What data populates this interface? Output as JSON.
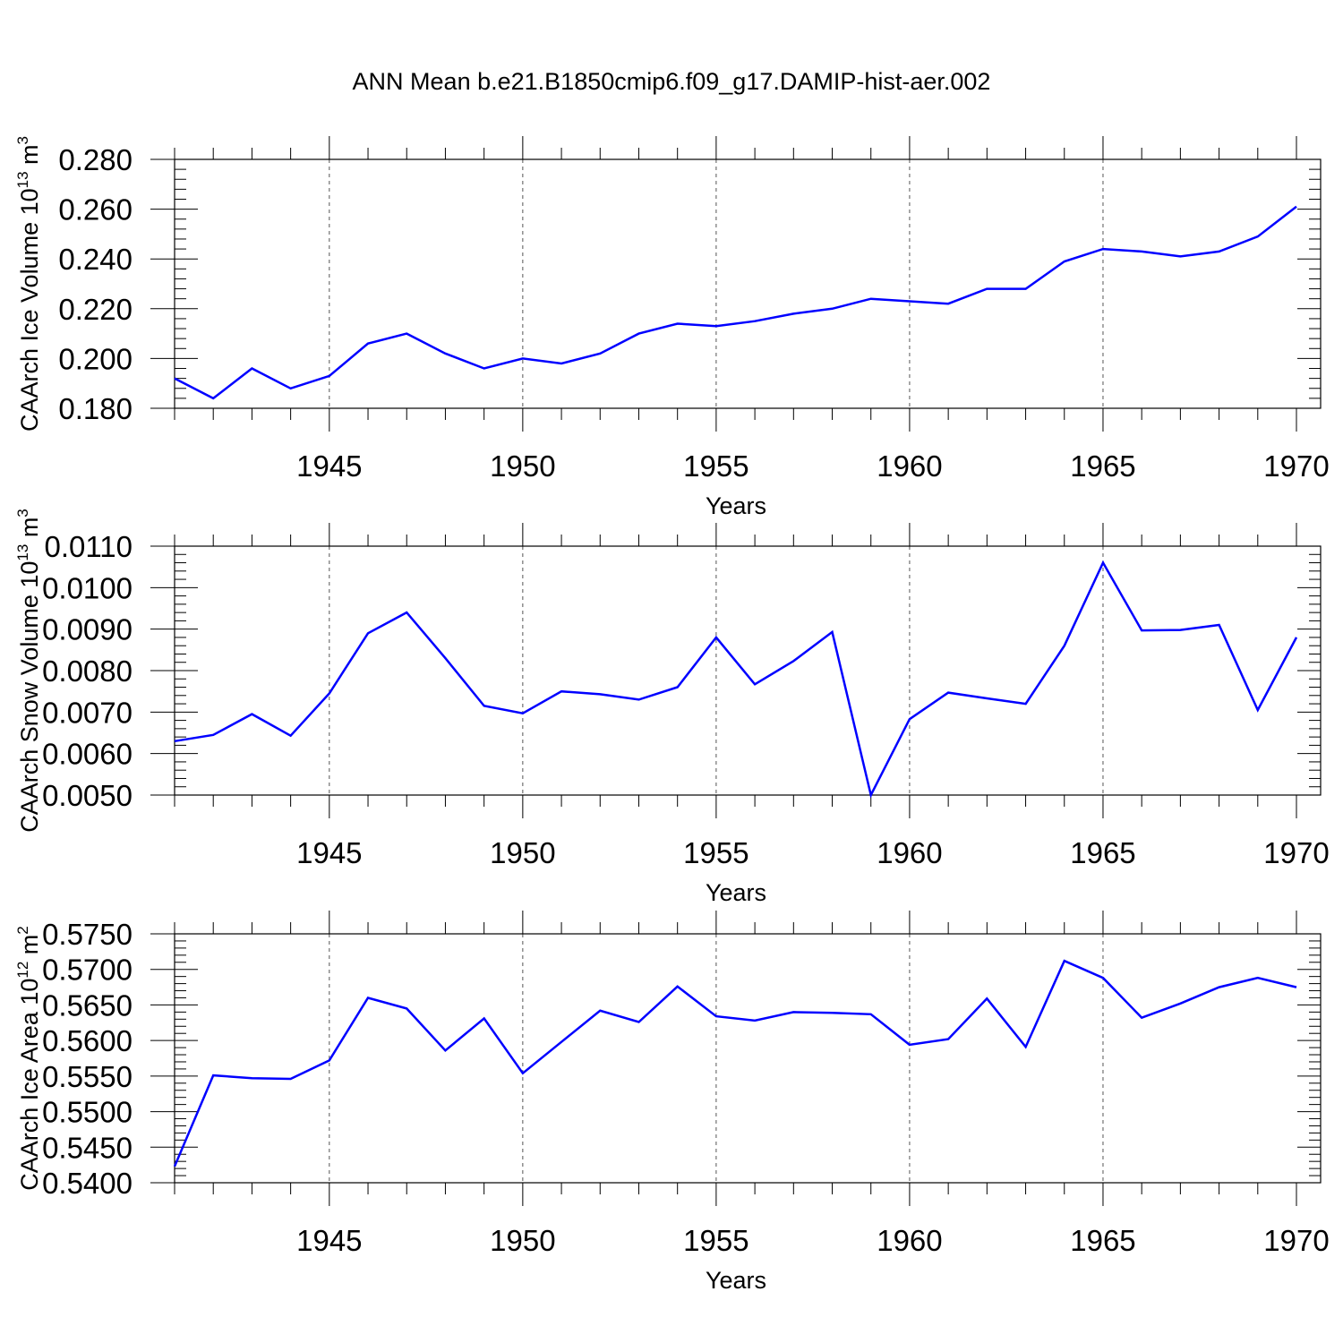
{
  "figure": {
    "title": "ANN Mean b.e21.B1850cmip6.f09_g17.DAMIP-hist-aer.002"
  },
  "colors": {
    "series": "#0000ff",
    "axis": "#000000",
    "grid": "#555555"
  },
  "chart_data": [
    {
      "type": "line",
      "xlabel": "Years",
      "ylabel": {
        "main": "CAArch Ice Volume 10",
        "exp": "13",
        "unit": " m",
        "unit_exp": "3"
      },
      "xlim": [
        1941,
        1970
      ],
      "ylim": [
        0.18,
        0.28
      ],
      "x_ticks": [
        1945,
        1950,
        1955,
        1960,
        1965,
        1970
      ],
      "y_ticks": [
        "0.180",
        "0.200",
        "0.220",
        "0.240",
        "0.260",
        "0.280"
      ],
      "grid": "vertical dashed at major x ticks",
      "x": [
        1941,
        1942,
        1943,
        1944,
        1945,
        1946,
        1947,
        1948,
        1949,
        1950,
        1951,
        1952,
        1953,
        1954,
        1955,
        1956,
        1957,
        1958,
        1959,
        1960,
        1961,
        1962,
        1963,
        1964,
        1965,
        1966,
        1967,
        1968,
        1969,
        1970
      ],
      "series": [
        {
          "values": [
            0.192,
            0.184,
            0.196,
            0.188,
            0.193,
            0.206,
            0.21,
            0.202,
            0.196,
            0.2,
            0.198,
            0.202,
            0.21,
            0.214,
            0.213,
            0.215,
            0.218,
            0.22,
            0.224,
            0.223,
            0.222,
            0.228,
            0.228,
            0.239,
            0.244,
            0.243,
            0.241,
            0.243,
            0.249,
            0.261
          ]
        }
      ]
    },
    {
      "type": "line",
      "xlabel": "Years",
      "ylabel": {
        "main": "CAArch Snow Volume 10",
        "exp": "13",
        "unit": " m",
        "unit_exp": "3"
      },
      "xlim": [
        1941,
        1970
      ],
      "ylim": [
        0.005,
        0.011
      ],
      "x_ticks": [
        1945,
        1950,
        1955,
        1960,
        1965,
        1970
      ],
      "y_ticks": [
        "0.0050",
        "0.0060",
        "0.0070",
        "0.0080",
        "0.0090",
        "0.0100",
        "0.0110"
      ],
      "grid": "vertical dashed at major x ticks",
      "x": [
        1941,
        1942,
        1943,
        1944,
        1945,
        1946,
        1947,
        1948,
        1949,
        1950,
        1951,
        1952,
        1953,
        1954,
        1955,
        1956,
        1957,
        1958,
        1959,
        1960,
        1961,
        1962,
        1963,
        1964,
        1965,
        1966,
        1967,
        1968,
        1969,
        1970
      ],
      "series": [
        {
          "values": [
            0.0063,
            0.00645,
            0.00695,
            0.00643,
            0.00745,
            0.0089,
            0.0094,
            0.0083,
            0.00715,
            0.00697,
            0.0075,
            0.00743,
            0.0073,
            0.0076,
            0.0088,
            0.00767,
            0.00823,
            0.00893,
            0.005,
            0.00683,
            0.00747,
            0.00733,
            0.0072,
            0.0086,
            0.0106,
            0.00897,
            0.00898,
            0.0091,
            0.00705,
            0.0088
          ]
        }
      ]
    },
    {
      "type": "line",
      "xlabel": "Years",
      "ylabel": {
        "main": "CAArch Ice Area 10",
        "exp": "12",
        "unit": " m",
        "unit_exp": "2"
      },
      "xlim": [
        1941,
        1970
      ],
      "ylim": [
        0.54,
        0.575
      ],
      "x_ticks": [
        1945,
        1950,
        1955,
        1960,
        1965,
        1970
      ],
      "y_ticks": [
        "0.5400",
        "0.5450",
        "0.5500",
        "0.5550",
        "0.5600",
        "0.5650",
        "0.5700",
        "0.5750"
      ],
      "grid": "vertical dashed at major x ticks",
      "x": [
        1941,
        1942,
        1943,
        1944,
        1945,
        1946,
        1947,
        1948,
        1949,
        1950,
        1951,
        1952,
        1953,
        1954,
        1955,
        1956,
        1957,
        1958,
        1959,
        1960,
        1961,
        1962,
        1963,
        1964,
        1965,
        1966,
        1967,
        1968,
        1969,
        1970
      ],
      "series": [
        {
          "values": [
            0.5423,
            0.5551,
            0.5547,
            0.5546,
            0.5572,
            0.566,
            0.5645,
            0.5586,
            0.5631,
            0.5554,
            0.5598,
            0.5642,
            0.5626,
            0.5676,
            0.5634,
            0.5628,
            0.564,
            0.5639,
            0.5637,
            0.5594,
            0.5602,
            0.5659,
            0.5591,
            0.5712,
            0.5688,
            0.5632,
            0.5652,
            0.5675,
            0.5688,
            0.5675
          ]
        }
      ]
    }
  ]
}
